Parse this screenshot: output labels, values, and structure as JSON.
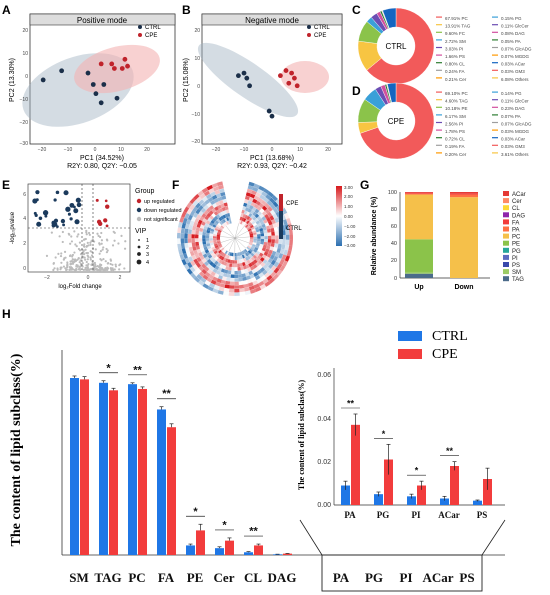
{
  "panels": {
    "A": {
      "letter": "A",
      "title": "Positive mode",
      "xlabel": "PC1 (34.52%)",
      "ylabel": "PC2 (13.30%)",
      "stats": "R2Y: 0.80, Q2Y: −0.05",
      "legend": [
        "CTRL",
        "CPE"
      ],
      "xticks": [
        "−20",
        "−10",
        "0",
        "10",
        "20"
      ],
      "yticks": [
        "20",
        "10",
        "0",
        "−10",
        "−20",
        "−30"
      ]
    },
    "B": {
      "letter": "B",
      "title": "Negative mode",
      "xlabel": "PC1 (13.68%)",
      "ylabel": "PC2 (15.08%)",
      "stats": "R2Y: 0.93, Q2Y: −0.42",
      "legend": [
        "CTRL",
        "CPE"
      ],
      "xticks": [
        "−20",
        "−10",
        "0",
        "10",
        "20"
      ],
      "yticks": [
        "20",
        "10",
        "0",
        "−10",
        "−20"
      ]
    },
    "C": {
      "letter": "C",
      "center": "CTRL",
      "col1": [
        "67.91% PC",
        "13.91% TAG",
        "9.60% FC",
        "2.72% SM",
        "3.03% PI",
        "1.66% PS",
        "0.80% CL",
        "0.24% FA",
        "0.21% Cer"
      ],
      "col2": [
        "0.15% PG",
        "0.11% GlcCer",
        "0.08% DAG",
        "0.05% PA",
        "0.07% GlcADG",
        "0.07% MGDG",
        "0.03% ACar",
        "0.03% GM3",
        "6.08% Others"
      ]
    },
    "D": {
      "letter": "D",
      "center": "CPE",
      "col1": [
        "69.10% PC",
        "4.60% TAG",
        "10.18% PE",
        "6.17% SM",
        "2.56% PI",
        "1.78% PS",
        "0.72% CL",
        "0.19% FA",
        "0.20% Cer"
      ],
      "col2": [
        "0.14% PG",
        "0.11% GlcCer",
        "0.23% DAG",
        "0.07% PA",
        "0.07% GlcADG",
        "0.03% MGDG",
        "0.03% ACar",
        "0.03% GM3",
        "3.61% Others"
      ]
    },
    "E": {
      "letter": "E",
      "xlabel": "log₂Fold change",
      "ylabel": "-log₁₀pvalue",
      "xticks": [
        "−2",
        "0",
        "2"
      ],
      "yticks": [
        "6",
        "4",
        "2",
        "0"
      ],
      "legend_title": "Group",
      "groups": [
        "up regulated",
        "down regulated",
        "not significant"
      ],
      "vip_title": "VIP",
      "vip": [
        "1",
        "2",
        "3",
        "4"
      ]
    },
    "F": {
      "letter": "F",
      "labels": [
        "CPE",
        "CTRL"
      ],
      "scale": [
        "3.00",
        "2.00",
        "1.00",
        "0.00",
        "−1.00",
        "−2.00",
        "−3.00"
      ]
    },
    "G": {
      "letter": "G",
      "ylabel": "Relative abundance (%)",
      "yticks": [
        "100",
        "80",
        "60",
        "40",
        "20",
        "0"
      ],
      "categories": [
        "Up",
        "Down"
      ]
    },
    "H": {
      "letter": "H",
      "ylabel": "The content of lipid subclass(%)",
      "inset_ylabel": "The content of lipid subclass(%)"
    }
  },
  "legend_h": {
    "ctrl": "CTRL",
    "cpe": "CPE",
    "ctrl_color": "#1f77e6",
    "cpe_color": "#f23c3c"
  },
  "chart_data": [
    {
      "type": "scatter",
      "panel": "A",
      "series": [
        {
          "name": "CTRL",
          "x": [
            -25,
            -18,
            -8,
            -6,
            -5,
            -3,
            -2,
            3
          ],
          "y": [
            -2,
            2,
            1,
            -4,
            -8,
            -12,
            -4,
            -10
          ]
        },
        {
          "name": "CPE",
          "x": [
            -3,
            1,
            2,
            5,
            6,
            7
          ],
          "y": [
            5,
            5,
            3,
            3,
            7,
            4
          ]
        }
      ],
      "xlim": [
        -30,
        25
      ],
      "ylim": [
        -30,
        22
      ]
    },
    {
      "type": "scatter",
      "panel": "B",
      "series": [
        {
          "name": "CTRL",
          "x": [
            -12,
            -10,
            -9,
            -8,
            -1,
            0
          ],
          "y": [
            2,
            3,
            1,
            -2,
            -12,
            -14
          ]
        },
        {
          "name": "CPE",
          "x": [
            3,
            5,
            6,
            7,
            8,
            9
          ],
          "y": [
            2,
            4,
            -1,
            3,
            1,
            -2
          ]
        }
      ],
      "xlim": [
        -25,
        25
      ],
      "ylim": [
        -25,
        22
      ]
    },
    {
      "type": "pie",
      "panel": "C",
      "labels": [
        "PC",
        "TAG",
        "FC",
        "SM",
        "PI",
        "PS",
        "CL",
        "FA",
        "Cer",
        "Others"
      ],
      "values": [
        67.91,
        13.91,
        9.6,
        2.72,
        3.03,
        1.66,
        0.8,
        0.24,
        0.21,
        6.08
      ]
    },
    {
      "type": "pie",
      "panel": "D",
      "labels": [
        "PC",
        "TAG",
        "PE",
        "SM",
        "PI",
        "PS",
        "CL",
        "FA",
        "Cer",
        "Others"
      ],
      "values": [
        69.1,
        4.6,
        10.18,
        6.17,
        2.56,
        1.78,
        0.72,
        0.19,
        0.2,
        3.61
      ]
    },
    {
      "type": "bar",
      "panel": "G",
      "stacked": true,
      "categories": [
        "Up",
        "Down"
      ],
      "series": [
        {
          "name": "TAG",
          "values": [
            5,
            0
          ]
        },
        {
          "name": "SM",
          "values": [
            2,
            0
          ]
        },
        {
          "name": "PE",
          "values": [
            38,
            0
          ]
        },
        {
          "name": "PC",
          "values": [
            52,
            94
          ]
        },
        {
          "name": "PA",
          "values": [
            1,
            3
          ]
        },
        {
          "name": "FA",
          "values": [
            1,
            1
          ]
        },
        {
          "name": "ACar",
          "values": [
            1,
            2
          ]
        }
      ],
      "ylim": [
        0,
        100
      ]
    },
    {
      "type": "bar",
      "panel": "H",
      "categories": [
        "SM",
        "TAG",
        "PC",
        "FA",
        "PE",
        "Cer",
        "CL",
        "DAG",
        "PA",
        "PG",
        "PI",
        "ACar",
        "PS"
      ],
      "series": [
        {
          "name": "CTRL",
          "values": [
            25.9,
            25.2,
            25.0,
            21.3,
            1.4,
            1.0,
            0.4,
            0.1,
            0.009,
            0.005,
            0.004,
            0.003,
            0.002
          ],
          "err": [
            0.3,
            0.3,
            0.2,
            0.4,
            0.2,
            0.2,
            0.1,
            0.02,
            0.002,
            0.001,
            0.001,
            0.001,
            0.0003
          ]
        },
        {
          "name": "CPE",
          "values": [
            25.7,
            24.1,
            24.3,
            18.7,
            3.6,
            2.1,
            1.4,
            0.2,
            0.037,
            0.021,
            0.009,
            0.018,
            0.012
          ],
          "err": [
            0.4,
            0.3,
            0.3,
            0.5,
            0.9,
            0.4,
            0.2,
            0.03,
            0.005,
            0.007,
            0.002,
            0.002,
            0.005
          ]
        }
      ],
      "significance": [
        "",
        "*",
        "**",
        "**",
        "*",
        "*",
        "**",
        "",
        "",
        "",
        "",
        "",
        ""
      ],
      "ylim": [
        0,
        30
      ]
    },
    {
      "type": "bar",
      "panel": "H-inset",
      "categories": [
        "PA",
        "PG",
        "PI",
        "ACar",
        "PS"
      ],
      "series": [
        {
          "name": "CTRL",
          "values": [
            0.009,
            0.005,
            0.004,
            0.003,
            0.002
          ],
          "err": [
            0.002,
            0.001,
            0.001,
            0.001,
            0.0003
          ]
        },
        {
          "name": "CPE",
          "values": [
            0.037,
            0.021,
            0.009,
            0.018,
            0.012
          ],
          "err": [
            0.005,
            0.007,
            0.002,
            0.002,
            0.005
          ]
        }
      ],
      "significance": [
        "**",
        "*",
        "*",
        "**",
        ""
      ],
      "ylim": [
        0,
        0.06
      ],
      "yticks": [
        "0.06",
        "0.04",
        "0.02",
        "0.00"
      ]
    }
  ]
}
